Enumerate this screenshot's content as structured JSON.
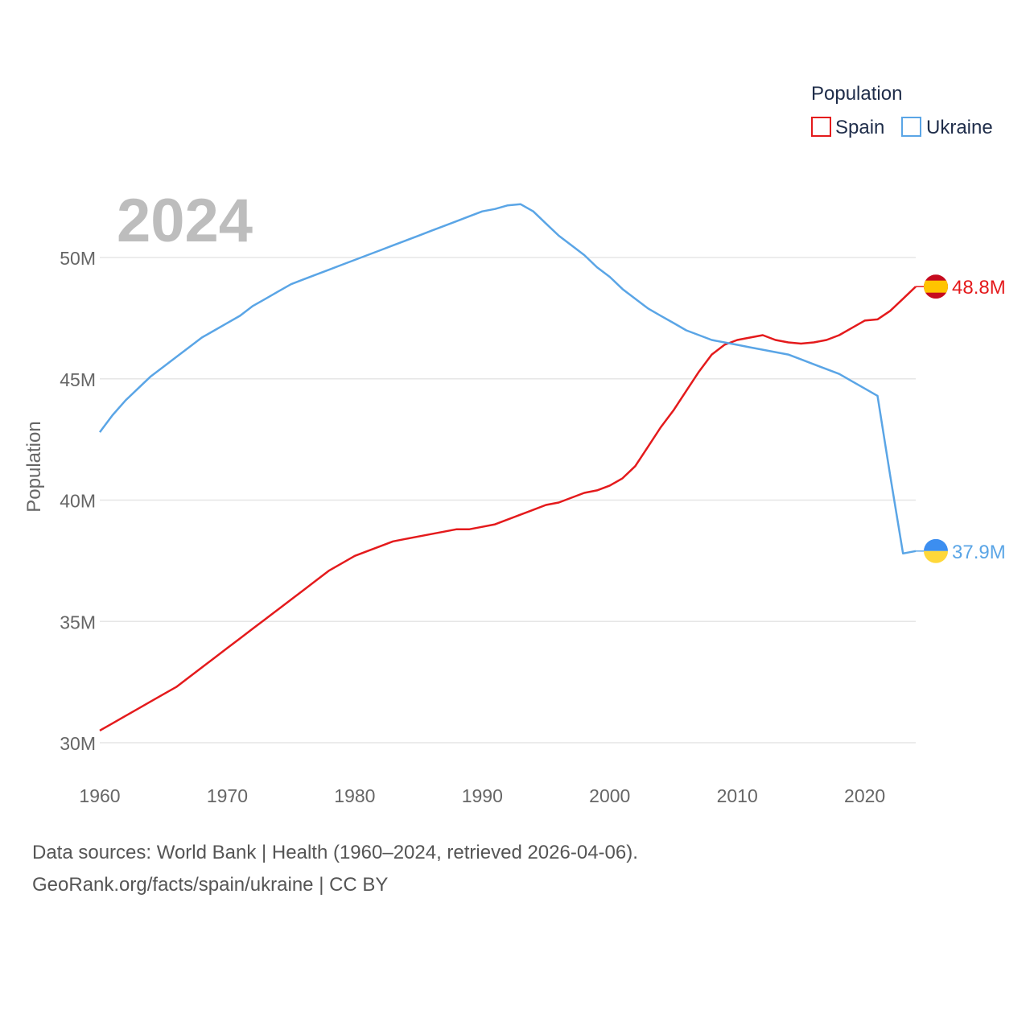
{
  "chart_data": {
    "type": "line",
    "title": "",
    "year_label": "2024",
    "xlabel": "",
    "ylabel": "Population",
    "xlim": [
      1960,
      2024
    ],
    "ylim": [
      30,
      53
    ],
    "y_unit": "M",
    "x_ticks": [
      1960,
      1970,
      1980,
      1990,
      2000,
      2010,
      2020
    ],
    "y_ticks": [
      {
        "value": 30,
        "label": "30M"
      },
      {
        "value": 35,
        "label": "35M"
      },
      {
        "value": 40,
        "label": "40M"
      },
      {
        "value": 45,
        "label": "45M"
      },
      {
        "value": 50,
        "label": "50M"
      }
    ],
    "legend": {
      "title": "Population",
      "position": "top-right",
      "entries": [
        "Spain",
        "Ukraine"
      ]
    },
    "x": [
      1960,
      1961,
      1962,
      1963,
      1964,
      1965,
      1966,
      1967,
      1968,
      1969,
      1970,
      1971,
      1972,
      1973,
      1974,
      1975,
      1976,
      1977,
      1978,
      1979,
      1980,
      1981,
      1982,
      1983,
      1984,
      1985,
      1986,
      1987,
      1988,
      1989,
      1990,
      1991,
      1992,
      1993,
      1994,
      1995,
      1996,
      1997,
      1998,
      1999,
      2000,
      2001,
      2002,
      2003,
      2004,
      2005,
      2006,
      2007,
      2008,
      2009,
      2010,
      2011,
      2012,
      2013,
      2014,
      2015,
      2016,
      2017,
      2018,
      2019,
      2020,
      2021,
      2022,
      2023,
      2024
    ],
    "series": [
      {
        "name": "Spain",
        "color": "#e41a1c",
        "end_label": "48.8M",
        "flag": "spain",
        "values": [
          30.5,
          30.8,
          31.1,
          31.4,
          31.7,
          32.0,
          32.3,
          32.7,
          33.1,
          33.5,
          33.9,
          34.3,
          34.7,
          35.1,
          35.5,
          35.9,
          36.3,
          36.7,
          37.1,
          37.4,
          37.7,
          37.9,
          38.1,
          38.3,
          38.4,
          38.5,
          38.6,
          38.7,
          38.8,
          38.8,
          38.9,
          39.0,
          39.2,
          39.4,
          39.6,
          39.8,
          39.9,
          40.1,
          40.3,
          40.4,
          40.6,
          40.9,
          41.4,
          42.2,
          43.0,
          43.7,
          44.5,
          45.3,
          46.0,
          46.4,
          46.6,
          46.7,
          46.8,
          46.6,
          46.5,
          46.45,
          46.5,
          46.6,
          46.8,
          47.1,
          47.4,
          47.45,
          47.8,
          48.3,
          48.8
        ]
      },
      {
        "name": "Ukraine",
        "color": "#5aa5e6",
        "end_label": "37.9M",
        "flag": "ukraine",
        "values": [
          42.8,
          43.5,
          44.1,
          44.6,
          45.1,
          45.5,
          45.9,
          46.3,
          46.7,
          47.0,
          47.3,
          47.6,
          48.0,
          48.3,
          48.6,
          48.9,
          49.1,
          49.3,
          49.5,
          49.7,
          49.9,
          50.1,
          50.3,
          50.5,
          50.7,
          50.9,
          51.1,
          51.3,
          51.5,
          51.7,
          51.9,
          52.0,
          52.15,
          52.2,
          51.9,
          51.4,
          50.9,
          50.5,
          50.1,
          49.6,
          49.2,
          48.7,
          48.3,
          47.9,
          47.6,
          47.3,
          47.0,
          46.8,
          46.6,
          46.5,
          46.4,
          46.3,
          46.2,
          46.1,
          46.0,
          45.8,
          45.6,
          45.4,
          45.2,
          44.9,
          44.6,
          44.3,
          41.0,
          37.8,
          37.9
        ]
      }
    ],
    "source_lines": [
      "Data sources: World Bank | Health (1960–2024, retrieved 2026-04-06).",
      "GeoRank.org/facts/spain/ukraine | CC BY"
    ]
  }
}
